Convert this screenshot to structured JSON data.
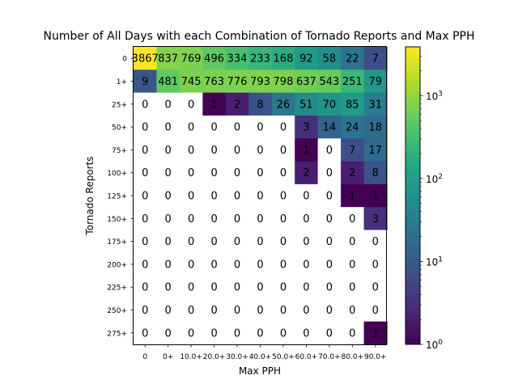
{
  "chart_data": {
    "type": "heatmap",
    "title": "Number of All Days with each Combination of Tornado Reports and Max PPH",
    "xlabel": "Max PPH",
    "ylabel": "Tornado Reports",
    "x_categories": [
      "0",
      "0+",
      "10.0+",
      "20.0+",
      "30.0+",
      "40.0+",
      "50.0+",
      "60.0+",
      "70.0+",
      "80.0+",
      "90.0+"
    ],
    "y_categories": [
      "0",
      "1+",
      "25+",
      "50+",
      "75+",
      "100+",
      "125+",
      "150+",
      "175+",
      "200+",
      "225+",
      "250+",
      "275+"
    ],
    "values": [
      [
        3867,
        837,
        769,
        496,
        334,
        233,
        168,
        92,
        58,
        22,
        7
      ],
      [
        9,
        481,
        745,
        763,
        776,
        793,
        798,
        637,
        543,
        251,
        79
      ],
      [
        0,
        0,
        0,
        1,
        2,
        8,
        26,
        51,
        70,
        85,
        31
      ],
      [
        0,
        0,
        0,
        0,
        0,
        0,
        0,
        3,
        14,
        24,
        18
      ],
      [
        0,
        0,
        0,
        0,
        0,
        0,
        0,
        1,
        0,
        7,
        17
      ],
      [
        0,
        0,
        0,
        0,
        0,
        0,
        0,
        2,
        0,
        2,
        8
      ],
      [
        0,
        0,
        0,
        0,
        0,
        0,
        0,
        0,
        0,
        1,
        1
      ],
      [
        0,
        0,
        0,
        0,
        0,
        0,
        0,
        0,
        0,
        0,
        3
      ],
      [
        0,
        0,
        0,
        0,
        0,
        0,
        0,
        0,
        0,
        0,
        0
      ],
      [
        0,
        0,
        0,
        0,
        0,
        0,
        0,
        0,
        0,
        0,
        0
      ],
      [
        0,
        0,
        0,
        0,
        0,
        0,
        0,
        0,
        0,
        0,
        0
      ],
      [
        0,
        0,
        0,
        0,
        0,
        0,
        0,
        0,
        0,
        0,
        0
      ],
      [
        0,
        0,
        0,
        0,
        0,
        0,
        0,
        0,
        0,
        0,
        1
      ]
    ],
    "color_scale": "log",
    "colormap": "viridis",
    "zero_color": "#ffffff",
    "colorbar": {
      "range": [
        1,
        3867
      ],
      "ticks": [
        {
          "value": 1,
          "base": "10",
          "exp": "0"
        },
        {
          "value": 10,
          "base": "10",
          "exp": "1"
        },
        {
          "value": 100,
          "base": "10",
          "exp": "2"
        },
        {
          "value": 1000,
          "base": "10",
          "exp": "3"
        }
      ]
    },
    "grid": false
  }
}
